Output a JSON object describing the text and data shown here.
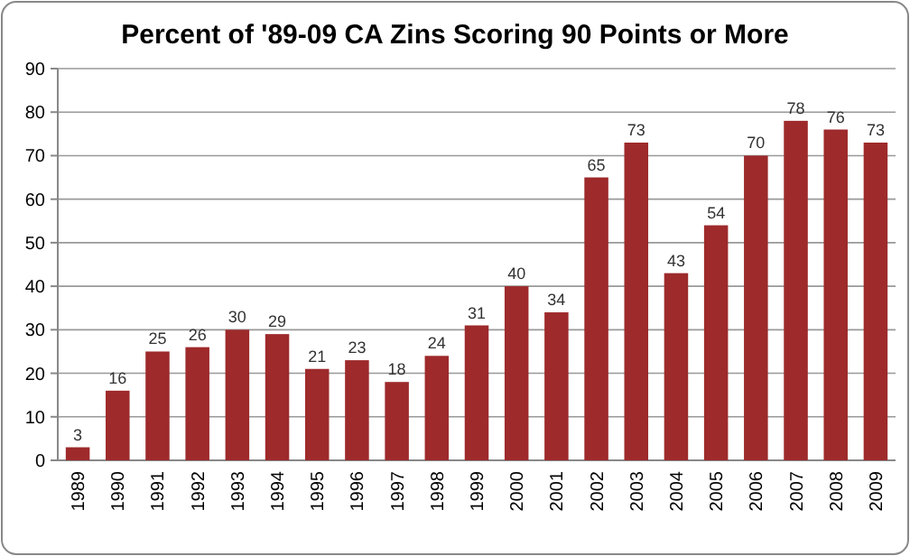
{
  "chart_data": {
    "type": "bar",
    "title": "Percent of '89-09 CA Zins Scoring 90 Points or More",
    "categories": [
      "1989",
      "1990",
      "1991",
      "1992",
      "1993",
      "1994",
      "1995",
      "1996",
      "1997",
      "1998",
      "1999",
      "2000",
      "2001",
      "2002",
      "2003",
      "2004",
      "2005",
      "2006",
      "2007",
      "2008",
      "2009"
    ],
    "values": [
      3,
      16,
      25,
      26,
      30,
      29,
      21,
      23,
      18,
      24,
      31,
      40,
      34,
      65,
      73,
      43,
      54,
      70,
      78,
      76,
      73
    ],
    "color": "#9e2a2b",
    "ylim": [
      0,
      90
    ],
    "yticks": [
      0,
      10,
      20,
      30,
      40,
      50,
      60,
      70,
      80,
      90
    ],
    "grid": "y",
    "data_labels": true
  }
}
